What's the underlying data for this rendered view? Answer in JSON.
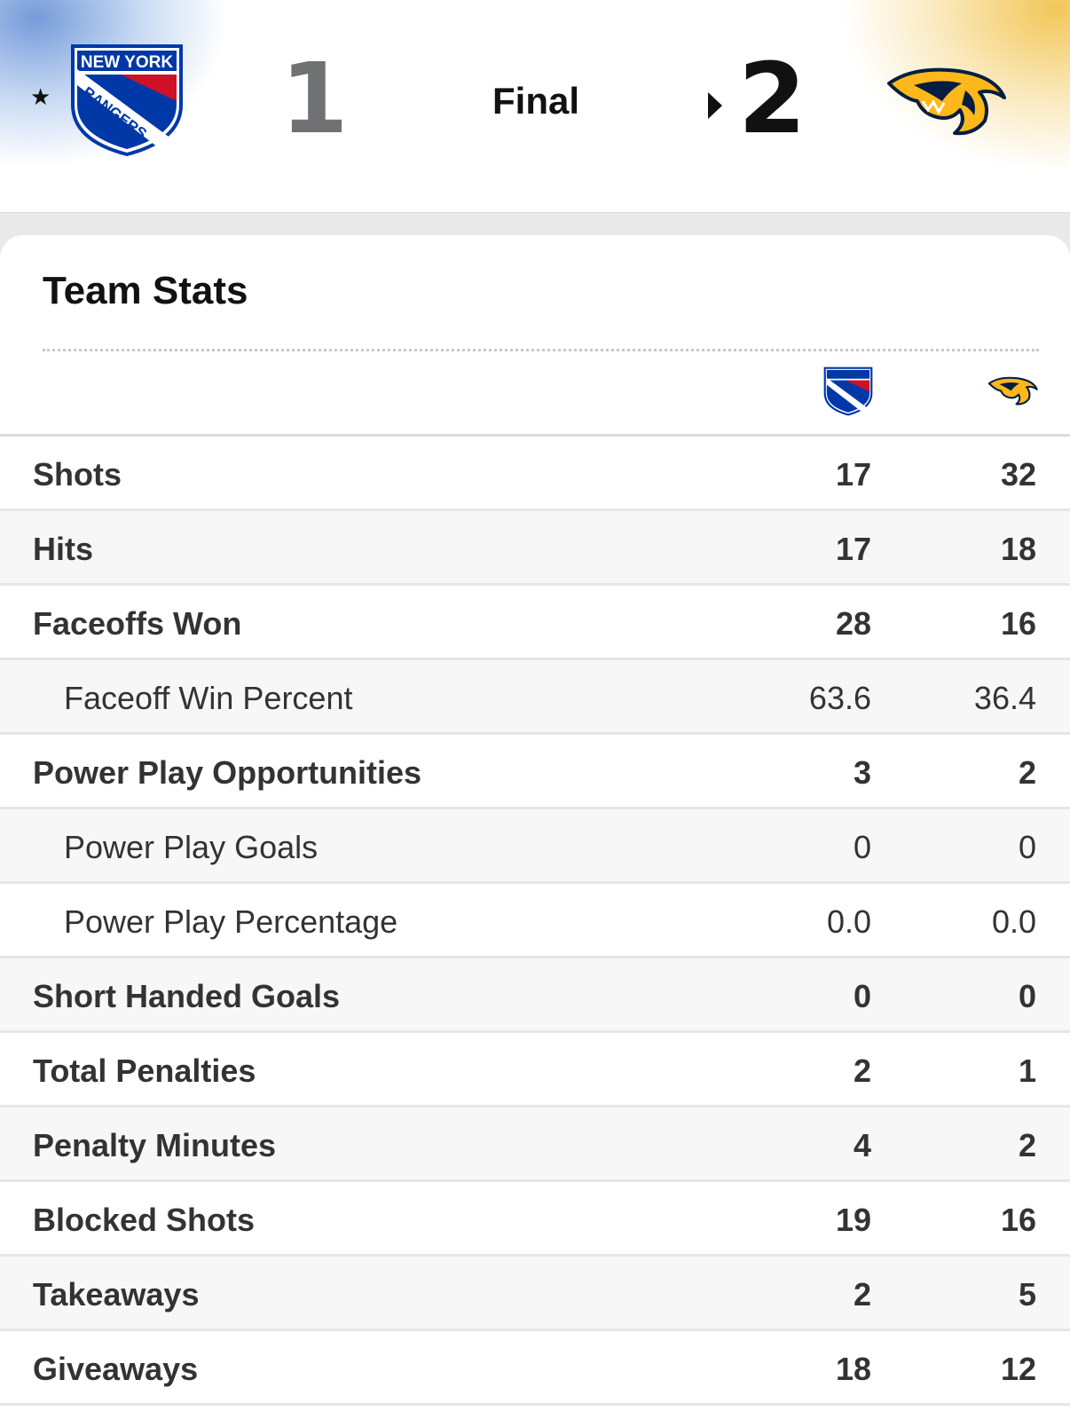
{
  "game": {
    "status": "Final",
    "away": {
      "team": "New York Rangers",
      "logo_text_top": "NEW YORK",
      "logo_text_mid": "RANGERS",
      "score": "1",
      "icon": "rangers-logo-icon"
    },
    "home": {
      "team": "Nashville Predators",
      "score": "2",
      "icon": "predators-logo-icon",
      "winner": true
    },
    "favorite_icon": "star-icon"
  },
  "stats": {
    "title": "Team Stats",
    "rows": [
      {
        "label": "Shots",
        "away": "17",
        "home": "32",
        "sub": false
      },
      {
        "label": "Hits",
        "away": "17",
        "home": "18",
        "sub": false
      },
      {
        "label": "Faceoffs Won",
        "away": "28",
        "home": "16",
        "sub": false
      },
      {
        "label": "Faceoff Win Percent",
        "away": "63.6",
        "home": "36.4",
        "sub": true
      },
      {
        "label": "Power Play Opportunities",
        "away": "3",
        "home": "2",
        "sub": false
      },
      {
        "label": "Power Play Goals",
        "away": "0",
        "home": "0",
        "sub": true
      },
      {
        "label": "Power Play Percentage",
        "away": "0.0",
        "home": "0.0",
        "sub": true
      },
      {
        "label": "Short Handed Goals",
        "away": "0",
        "home": "0",
        "sub": false
      },
      {
        "label": "Total Penalties",
        "away": "2",
        "home": "1",
        "sub": false
      },
      {
        "label": "Penalty Minutes",
        "away": "4",
        "home": "2",
        "sub": false
      },
      {
        "label": "Blocked Shots",
        "away": "19",
        "home": "16",
        "sub": false
      },
      {
        "label": "Takeaways",
        "away": "2",
        "home": "5",
        "sub": false
      },
      {
        "label": "Giveaways",
        "away": "18",
        "home": "12",
        "sub": false
      }
    ]
  },
  "colors": {
    "rangers_blue": "#0038A8",
    "rangers_red": "#CE1126",
    "predators_gold": "#FFB81C",
    "predators_navy": "#041E42"
  }
}
